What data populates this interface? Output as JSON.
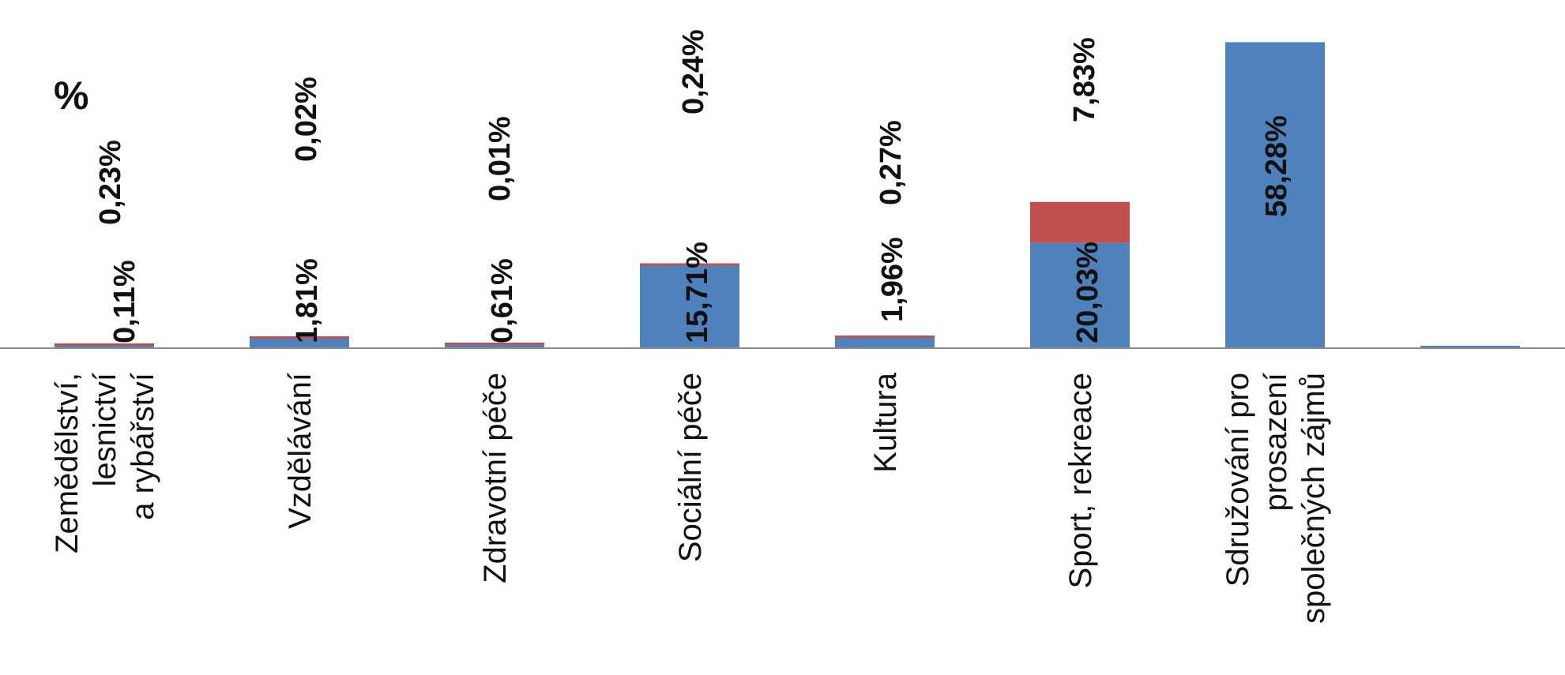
{
  "chart_data": {
    "type": "bar",
    "stacked": true,
    "unit_label": "%",
    "categories": [
      [
        "Zemědělství,",
        "lesnictví",
        "a rybářství"
      ],
      [
        "Vzdělávání"
      ],
      [
        "Zdravotní péče"
      ],
      [
        "Sociální péče"
      ],
      [
        "Kultura"
      ],
      [
        "Sport, rekreace"
      ],
      [
        "Sdružování pro",
        "prosazení",
        "společných zájmů"
      ],
      [
        ""
      ]
    ],
    "series": [
      {
        "color": "#4f81bd",
        "values": [
          0.11,
          1.81,
          0.61,
          15.71,
          1.96,
          20.03,
          58.28,
          0.3
        ],
        "labels": [
          "0,11%",
          "1,81%",
          "0,61%",
          "15,71%",
          "1,96%",
          "20,03%",
          "58,28%",
          ""
        ]
      },
      {
        "color": "#c0504d",
        "values": [
          0.23,
          0.02,
          0.01,
          0.24,
          0.27,
          7.83,
          0,
          0
        ],
        "labels": [
          "0,23%",
          "0,02%",
          "0,01%",
          "0,24%",
          "0,27%",
          "7,83%",
          "",
          ""
        ]
      }
    ],
    "ylim": [
      0,
      60
    ]
  }
}
